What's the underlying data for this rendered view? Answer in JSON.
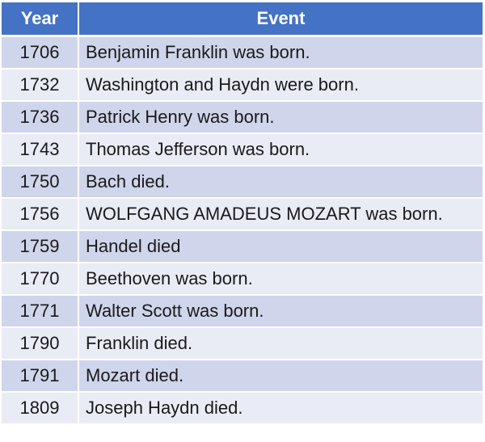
{
  "table": {
    "headers": {
      "year": "Year",
      "event": "Event"
    },
    "rows": [
      {
        "year": "1706",
        "event": "Benjamin Franklin was born."
      },
      {
        "year": "1732",
        "event": "Washington and Haydn were born."
      },
      {
        "year": "1736",
        "event": "Patrick Henry was born."
      },
      {
        "year": "1743",
        "event": "Thomas Jefferson was born."
      },
      {
        "year": "1750",
        "event": "Bach died."
      },
      {
        "year": "1756",
        "event": "WOLFGANG AMADEUS MOZART was born."
      },
      {
        "year": "1759",
        "event": "Handel died"
      },
      {
        "year": "1770",
        "event": "Beethoven was born."
      },
      {
        "year": "1771",
        "event": "Walter Scott was born."
      },
      {
        "year": "1790",
        "event": "Franklin died."
      },
      {
        "year": "1791",
        "event": "Mozart died."
      },
      {
        "year": "1809",
        "event": "Joseph Haydn died."
      }
    ]
  },
  "colors": {
    "header_bg": "#4472c4",
    "row_odd_bg": "#cfd5ea",
    "row_even_bg": "#e9ebf5"
  }
}
